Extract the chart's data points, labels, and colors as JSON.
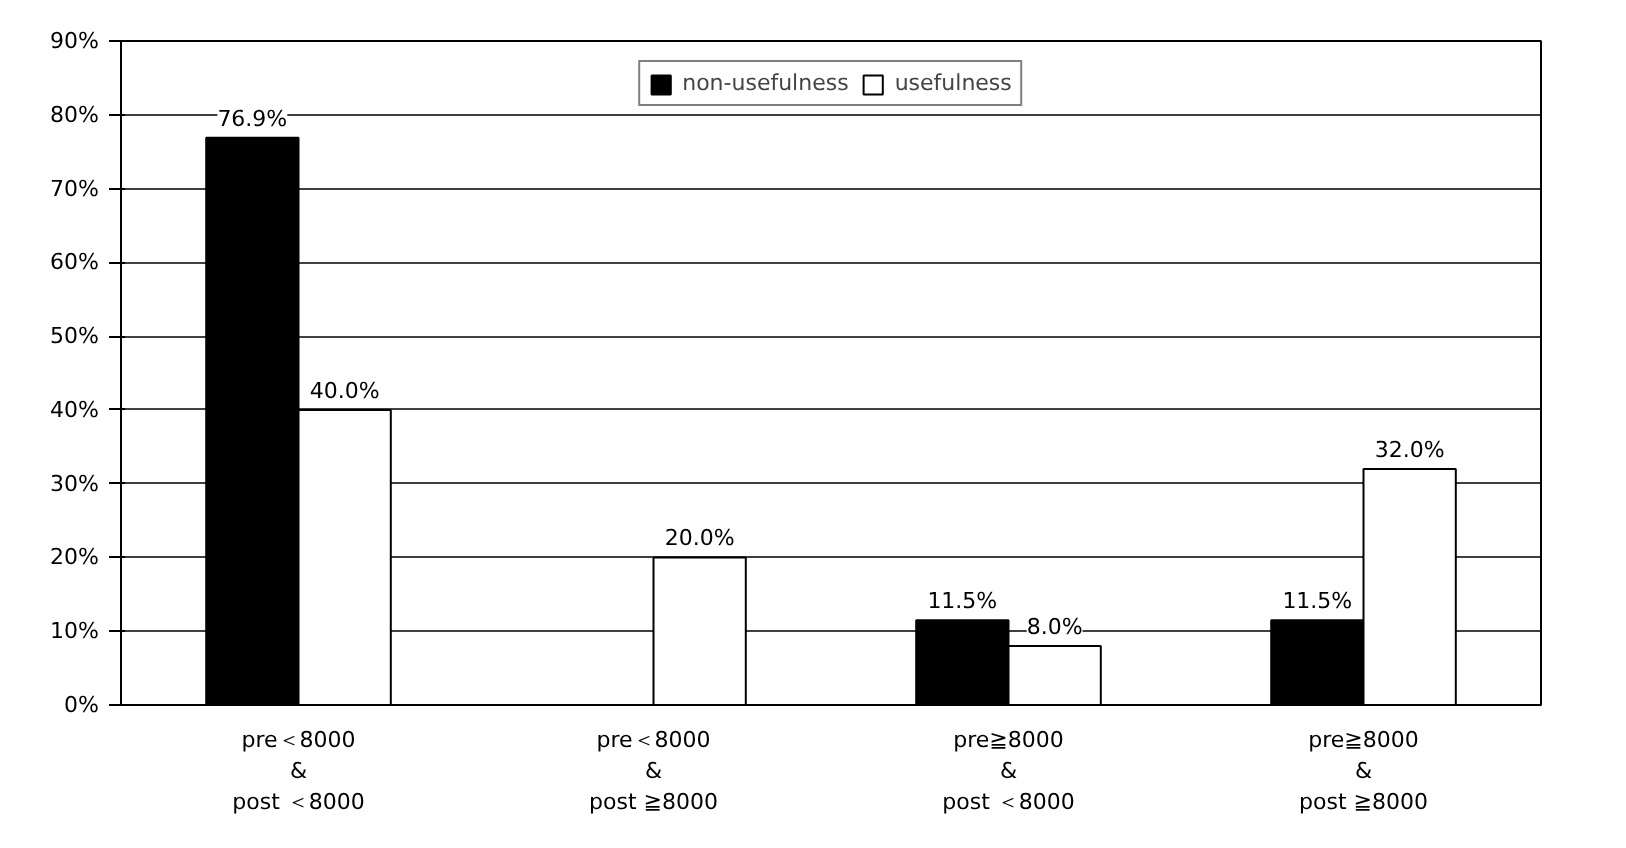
{
  "chart_data": {
    "type": "bar",
    "categories": [
      "pre＜8000\n&\npost ＜8000",
      "pre＜8000\n&\npost ≧8000",
      "pre≧8000\n&\npost ＜8000",
      "pre≧8000\n&\npost ≧8000"
    ],
    "series": [
      {
        "name": "non-usefulness",
        "color": "#000000",
        "values": [
          76.9,
          0,
          11.5,
          11.5
        ],
        "value_labels": [
          "76.9%",
          null,
          "11.5%",
          "11.5%"
        ]
      },
      {
        "name": "usefulness",
        "color": "#ffffff",
        "values": [
          40.0,
          20.0,
          8.0,
          32.0
        ],
        "value_labels": [
          "40.0%",
          "20.0%",
          "8.0%",
          "32.0%"
        ]
      }
    ],
    "ylim": [
      0,
      90
    ],
    "yticks": [
      {
        "value": 0,
        "label": "0%"
      },
      {
        "value": 10,
        "label": "10%"
      },
      {
        "value": 20,
        "label": "20%"
      },
      {
        "value": 30,
        "label": "30%"
      },
      {
        "value": 40,
        "label": "40%"
      },
      {
        "value": 50,
        "label": "50%"
      },
      {
        "value": 60,
        "label": "60%"
      },
      {
        "value": 70,
        "label": "70%"
      },
      {
        "value": 80,
        "label": "80%"
      },
      {
        "value": 90,
        "label": "90%"
      }
    ],
    "grid": "y",
    "legend": "top"
  }
}
